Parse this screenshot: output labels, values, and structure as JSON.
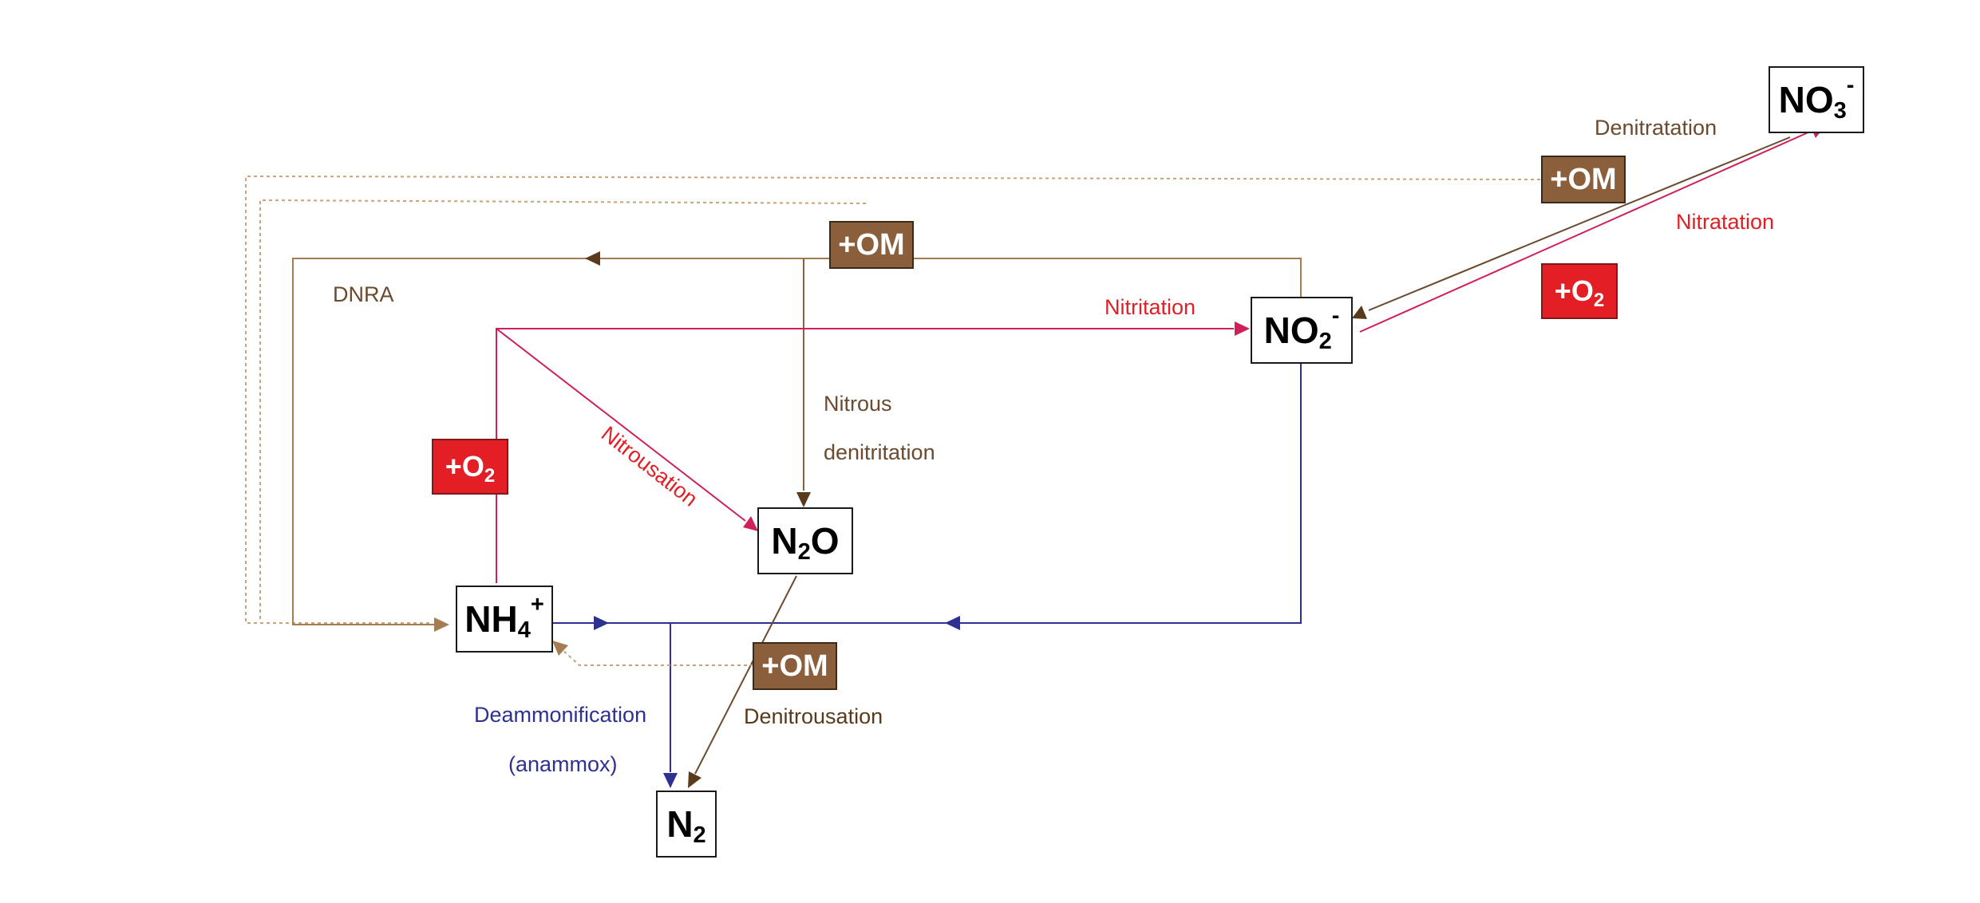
{
  "colors": {
    "brown": "#6b4a2e",
    "brown_dark": "#5a3a1a",
    "brown_light": "#a67c52",
    "red": "#e31e24",
    "pink": "#d11f5a",
    "blue": "#2e3192",
    "om_fill": "#8b5e3c",
    "o2_fill": "#e31e24"
  },
  "nodes": {
    "nh4": {
      "base": "NH",
      "sub": "4",
      "sup": "+"
    },
    "no2": {
      "base": "NO",
      "sub": "2",
      "sup": "-"
    },
    "no3": {
      "base": "NO",
      "sub": "3",
      "sup": "-"
    },
    "n2o": {
      "pre": "N",
      "sub": "2",
      "post": "O"
    },
    "n2": {
      "base": "N",
      "sub": "2"
    }
  },
  "tags": {
    "om": "+OM",
    "o2_base": "+O",
    "o2_sub": "2"
  },
  "processes": {
    "dnra": "DNRA",
    "nitritation": "Nitritation",
    "nitratation": "Nitratation",
    "denitratation": "Denitratation",
    "nitrousation": "Nitrousation",
    "nitrous_line1": "Nitrous",
    "nitrous_line2": "denitritation",
    "denitrousation": "Denitrousation",
    "deammonification": "Deammonification",
    "anammox": "(anammox)"
  }
}
